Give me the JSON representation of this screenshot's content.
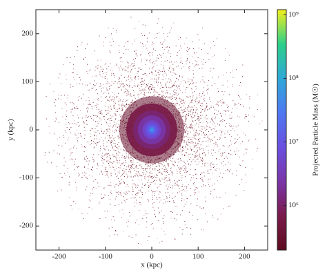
{
  "chart_data": {
    "type": "density",
    "xlabel": "x (kpc)",
    "ylabel": "y (kpc)",
    "colorbar_label": "Projected Particle Mass (M☉)",
    "xlim": [
      -250,
      250
    ],
    "xticks": [
      -200,
      -100,
      0,
      100,
      200
    ],
    "ylim": [
      -250,
      250
    ],
    "yticks": [
      -200,
      -100,
      0,
      100,
      200
    ],
    "clim": [
      200000,
      1200000000
    ],
    "log_color": true,
    "cticks": [
      {
        "value": 1000000,
        "label": "10⁶"
      },
      {
        "value": 10000000,
        "label": "10⁷"
      },
      {
        "value": 100000000,
        "label": "10⁸"
      },
      {
        "value": 1000000000,
        "label": "10⁹"
      }
    ],
    "colormap": [
      "#5c0b1f",
      "#7a1a4a",
      "#7a35a8",
      "#6a50e0",
      "#4f78f2",
      "#2fa8d8",
      "#2ccf8a",
      "#f2ef1e"
    ],
    "radii": [
      0,
      3,
      6,
      10,
      15,
      20,
      30,
      40,
      55,
      70
    ],
    "values": [
      120000000,
      60000000,
      30000000,
      15000000,
      8000000,
      5000000,
      2500000,
      1200000,
      600000,
      300000
    ]
  }
}
